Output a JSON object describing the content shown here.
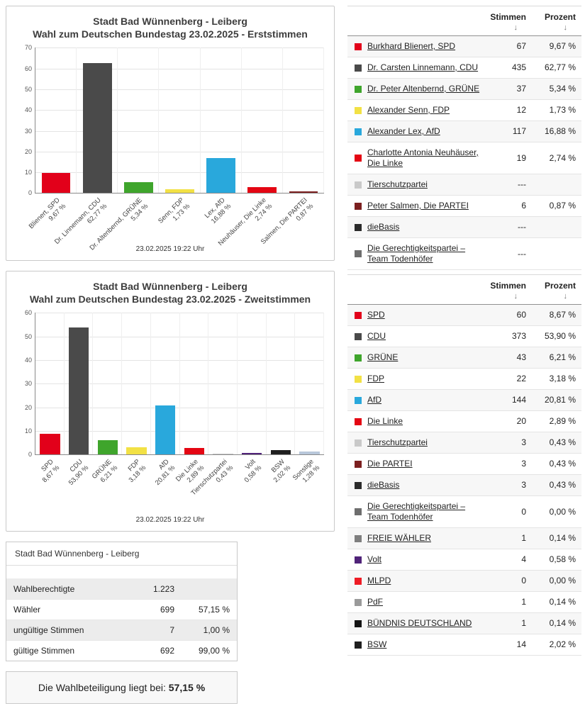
{
  "chart_data": [
    {
      "type": "bar",
      "title": "Stadt Bad Wünnenberg - Leiberg",
      "subtitle": "Wahl zum Deutschen Bundestag 23.02.2025  - Erststimmen",
      "timestamp": "23.02.2025 19:22 Uhr",
      "xlabel": "",
      "ylabel": "",
      "ylim": [
        0,
        70
      ],
      "ystep": 10,
      "grid": true,
      "categories": [
        "Blienert, SPD",
        "Dr. Linnemann, CDU",
        "Dr. Altenbernd, GRÜNE",
        "Senn, FDP",
        "Lex, AfD",
        "Neuhäuser, Die Linke",
        "Salmen, Die PARTEI"
      ],
      "values": [
        9.67,
        62.77,
        5.34,
        1.73,
        16.88,
        2.74,
        0.87
      ],
      "value_labels": [
        "9,67 %",
        "62,77 %",
        "5,34 %",
        "1,73 %",
        "16,88 %",
        "2,74 %",
        "0,87 %"
      ],
      "colors": [
        "#e2001a",
        "#4a4a4a",
        "#3fa52c",
        "#f2e145",
        "#29a8dc",
        "#e40613",
        "#7c2020"
      ]
    },
    {
      "type": "bar",
      "title": "Stadt Bad Wünnenberg - Leiberg",
      "subtitle": "Wahl zum Deutschen Bundestag 23.02.2025  - Zweitstimmen",
      "timestamp": "23.02.2025 19:22 Uhr",
      "xlabel": "",
      "ylabel": "",
      "ylim": [
        0,
        60
      ],
      "ystep": 10,
      "grid": true,
      "categories": [
        "SPD",
        "CDU",
        "GRÜNE",
        "FDP",
        "AfD",
        "Die Linke",
        "Tierschutzpartei",
        "Volt",
        "BSW",
        "Sonstige"
      ],
      "values": [
        8.67,
        53.9,
        6.21,
        3.18,
        20.81,
        2.89,
        0.43,
        0.58,
        2.02,
        1.28
      ],
      "value_labels": [
        "8,67 %",
        "53,90 %",
        "6,21 %",
        "3,18 %",
        "20,81 %",
        "2,89 %",
        "0,43 %",
        "0,58 %",
        "2,02 %",
        "1,28 %"
      ],
      "colors": [
        "#e2001a",
        "#4a4a4a",
        "#3fa52c",
        "#f2e145",
        "#29a8dc",
        "#e40613",
        "#c9c9c9",
        "#502379",
        "#1f1f1f",
        "#b8c7da"
      ]
    }
  ],
  "erststimmen_table": {
    "headers": {
      "stimmen": "Stimmen",
      "prozent": "Prozent",
      "sort_icon": "↓"
    },
    "rows": [
      {
        "color": "#e2001a",
        "name": "Burkhard Blienert, SPD",
        "stimmen": "67",
        "prozent": "9,67 %"
      },
      {
        "color": "#4a4a4a",
        "name": "Dr. Carsten Linnemann, CDU",
        "stimmen": "435",
        "prozent": "62,77 %"
      },
      {
        "color": "#3fa52c",
        "name": "Dr. Peter Altenbernd, GRÜNE",
        "stimmen": "37",
        "prozent": "5,34 %"
      },
      {
        "color": "#f2e145",
        "name": "Alexander Senn, FDP",
        "stimmen": "12",
        "prozent": "1,73 %"
      },
      {
        "color": "#29a8dc",
        "name": "Alexander Lex, AfD",
        "stimmen": "117",
        "prozent": "16,88 %"
      },
      {
        "color": "#e40613",
        "name": "Charlotte Antonia Neuhäuser, Die Linke",
        "stimmen": "19",
        "prozent": "2,74 %"
      },
      {
        "color": "#c9c9c9",
        "name": "Tierschutzpartei",
        "stimmen": "---",
        "prozent": ""
      },
      {
        "color": "#7c2020",
        "name": "Peter Salmen, Die PARTEI",
        "stimmen": "6",
        "prozent": "0,87 %"
      },
      {
        "color": "#2b2b2b",
        "name": "dieBasis",
        "stimmen": "---",
        "prozent": ""
      },
      {
        "color": "#6e6e6e",
        "name": "Die Gerechtigkeitspartei – Team Todenhöfer",
        "stimmen": "---",
        "prozent": ""
      }
    ]
  },
  "zweitstimmen_table": {
    "headers": {
      "stimmen": "Stimmen",
      "prozent": "Prozent",
      "sort_icon": "↓"
    },
    "rows": [
      {
        "color": "#e2001a",
        "name": "SPD",
        "stimmen": "60",
        "prozent": "8,67 %"
      },
      {
        "color": "#4a4a4a",
        "name": "CDU",
        "stimmen": "373",
        "prozent": "53,90 %"
      },
      {
        "color": "#3fa52c",
        "name": "GRÜNE",
        "stimmen": "43",
        "prozent": "6,21 %"
      },
      {
        "color": "#f2e145",
        "name": "FDP",
        "stimmen": "22",
        "prozent": "3,18 %"
      },
      {
        "color": "#29a8dc",
        "name": "AfD",
        "stimmen": "144",
        "prozent": "20,81 %"
      },
      {
        "color": "#e40613",
        "name": "Die Linke",
        "stimmen": "20",
        "prozent": "2,89 %"
      },
      {
        "color": "#c9c9c9",
        "name": "Tierschutzpartei",
        "stimmen": "3",
        "prozent": "0,43 %"
      },
      {
        "color": "#7c2020",
        "name": "Die PARTEI",
        "stimmen": "3",
        "prozent": "0,43 %"
      },
      {
        "color": "#2b2b2b",
        "name": "dieBasis",
        "stimmen": "3",
        "prozent": "0,43 %"
      },
      {
        "color": "#6e6e6e",
        "name": "Die Gerechtigkeitspartei – Team Todenhöfer",
        "stimmen": "0",
        "prozent": "0,00 %"
      },
      {
        "color": "#7f7f7f",
        "name": "FREIE WÄHLER",
        "stimmen": "1",
        "prozent": "0,14 %"
      },
      {
        "color": "#502379",
        "name": "Volt",
        "stimmen": "4",
        "prozent": "0,58 %"
      },
      {
        "color": "#ee1c25",
        "name": "MLPD",
        "stimmen": "0",
        "prozent": "0,00 %"
      },
      {
        "color": "#9a9a9a",
        "name": "PdF",
        "stimmen": "1",
        "prozent": "0,14 %"
      },
      {
        "color": "#141414",
        "name": "BÜNDNIS DEUTSCHLAND",
        "stimmen": "1",
        "prozent": "0,14 %"
      },
      {
        "color": "#1f1f1f",
        "name": "BSW",
        "stimmen": "14",
        "prozent": "2,02 %"
      }
    ]
  },
  "summary": {
    "title": "Stadt Bad Wünnenberg - Leiberg",
    "rows": [
      {
        "label": "Wahlberechtigte",
        "value": "1.223",
        "pct": ""
      },
      {
        "label": "Wähler",
        "value": "699",
        "pct": "57,15 %"
      },
      {
        "label": "ungültige Stimmen",
        "value": "7",
        "pct": "1,00 %"
      },
      {
        "label": "gültige Stimmen",
        "value": "692",
        "pct": "99,00 %"
      }
    ]
  },
  "turnout": {
    "prefix": "Die Wahlbeteiligung liegt bei:",
    "value": "57,15 %"
  }
}
